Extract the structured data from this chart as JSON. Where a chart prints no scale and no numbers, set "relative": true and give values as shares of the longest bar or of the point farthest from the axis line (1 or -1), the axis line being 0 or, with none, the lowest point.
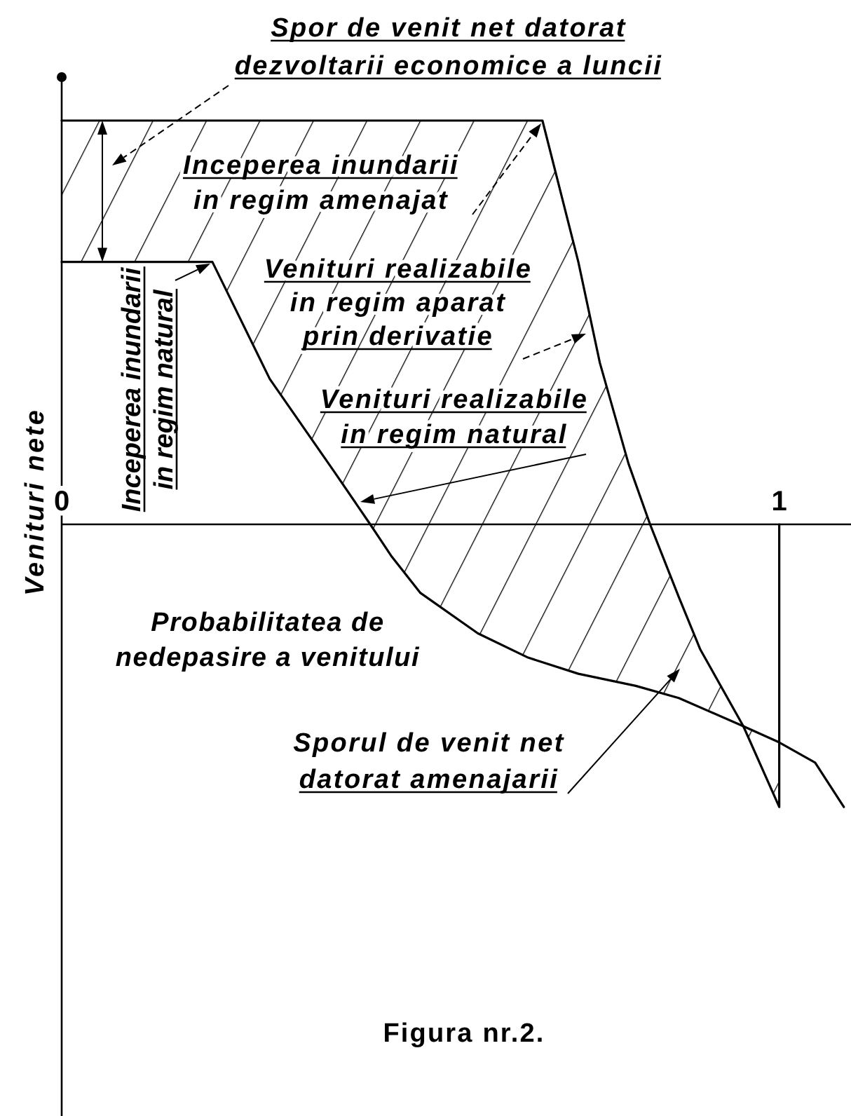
{
  "chart_data": {
    "type": "line",
    "xlabel": "Probabilitatea de\nnedepasire a venitului",
    "ylabel": "Venituri nete",
    "relative": true,
    "xlim": [
      0,
      1.1
    ],
    "xticks": [
      0,
      1
    ],
    "series": [
      {
        "color": "#000000",
        "x": [
          0,
          0.21,
          0.29,
          0.38,
          0.43,
          0.46,
          0.5,
          0.58,
          0.65,
          0.72,
          0.8,
          0.86,
          0.95,
          1.0,
          1.05,
          1.09
        ],
        "values": [
          0.65,
          0.65,
          0.36,
          0.13,
          0,
          -0.08,
          -0.17,
          -0.27,
          -0.33,
          -0.37,
          -0.4,
          -0.43,
          -0.5,
          -0.54,
          -0.59,
          -0.7
        ]
      },
      {
        "color": "#000000",
        "x": [
          0,
          0.21,
          0.29,
          0.38,
          0.43,
          0.46,
          0.5,
          0.58,
          0.65,
          0.67,
          0.72,
          0.75,
          0.79,
          0.82,
          0.86,
          0.89,
          0.95,
          1.0,
          1.0
        ],
        "values": [
          1,
          1,
          1,
          1,
          1,
          1,
          1,
          1,
          1,
          1,
          0.65,
          0.4,
          0.15,
          0,
          -0.18,
          -0.31,
          -0.5,
          -0.7,
          0
        ],
        "lower": [
          0.65,
          0.65,
          0.36,
          0.13,
          0,
          -0.08,
          -0.17,
          -0.27,
          -0.33,
          -0.34,
          -0.37,
          -0.38,
          -0.4,
          -0.41,
          -0.43,
          -0.45,
          -0.5,
          -0.54,
          null
        ],
        "upper": [
          1,
          1,
          1,
          1,
          1,
          1,
          1,
          1,
          1,
          1,
          0.65,
          0.4,
          0.15,
          0,
          -0.18,
          -0.31,
          -0.5,
          -0.7,
          null
        ]
      }
    ],
    "annotations": [
      "Spor de venit net datorat\ndezvoltarii economice a luncii",
      "Inceperea inundarii\nin regim amenajat",
      "Inceperea inundarii\nin regim natural",
      "Venituri realizabile\nin regim aparat\nprin derivatie",
      "Venituri realizabile\nin regim natural",
      "Sporul de venit net\ndatorat amenajarii",
      "Figura nr.2."
    ]
  }
}
